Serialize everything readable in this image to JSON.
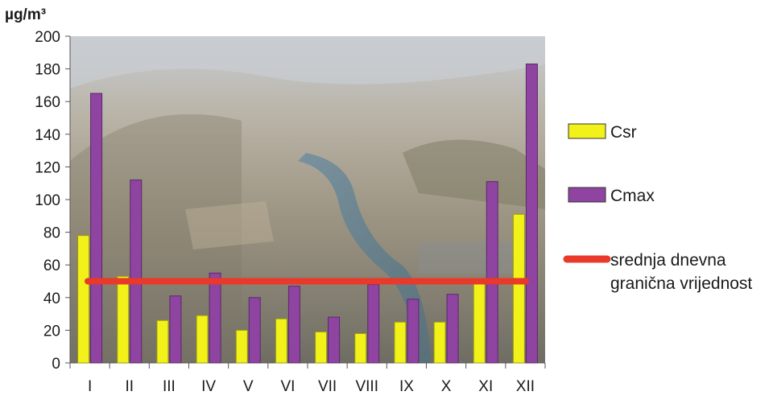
{
  "chart_data": {
    "type": "bar",
    "unit_label": "µg/m³",
    "categories": [
      "I",
      "II",
      "III",
      "IV",
      "V",
      "VI",
      "VII",
      "VIII",
      "IX",
      "X",
      "XI",
      "XII"
    ],
    "series": [
      {
        "name": "Csr",
        "color": "#f2f21a",
        "values": [
          78,
          53,
          26,
          29,
          20,
          27,
          19,
          18,
          25,
          25,
          49,
          91
        ]
      },
      {
        "name": "Cmax",
        "color": "#8e44a0",
        "values": [
          165,
          112,
          41,
          55,
          40,
          47,
          28,
          48,
          39,
          42,
          111,
          183
        ]
      }
    ],
    "reference_line": {
      "name_line1": "srednja dnevna",
      "name_line2": "granična vrijednost",
      "value": 50,
      "color": "#e8392a"
    },
    "ylim": [
      0,
      200
    ],
    "yticks": [
      0,
      20,
      40,
      60,
      80,
      100,
      120,
      140,
      160,
      180,
      200
    ],
    "background": "aerial city photo",
    "legend_position": "right"
  }
}
